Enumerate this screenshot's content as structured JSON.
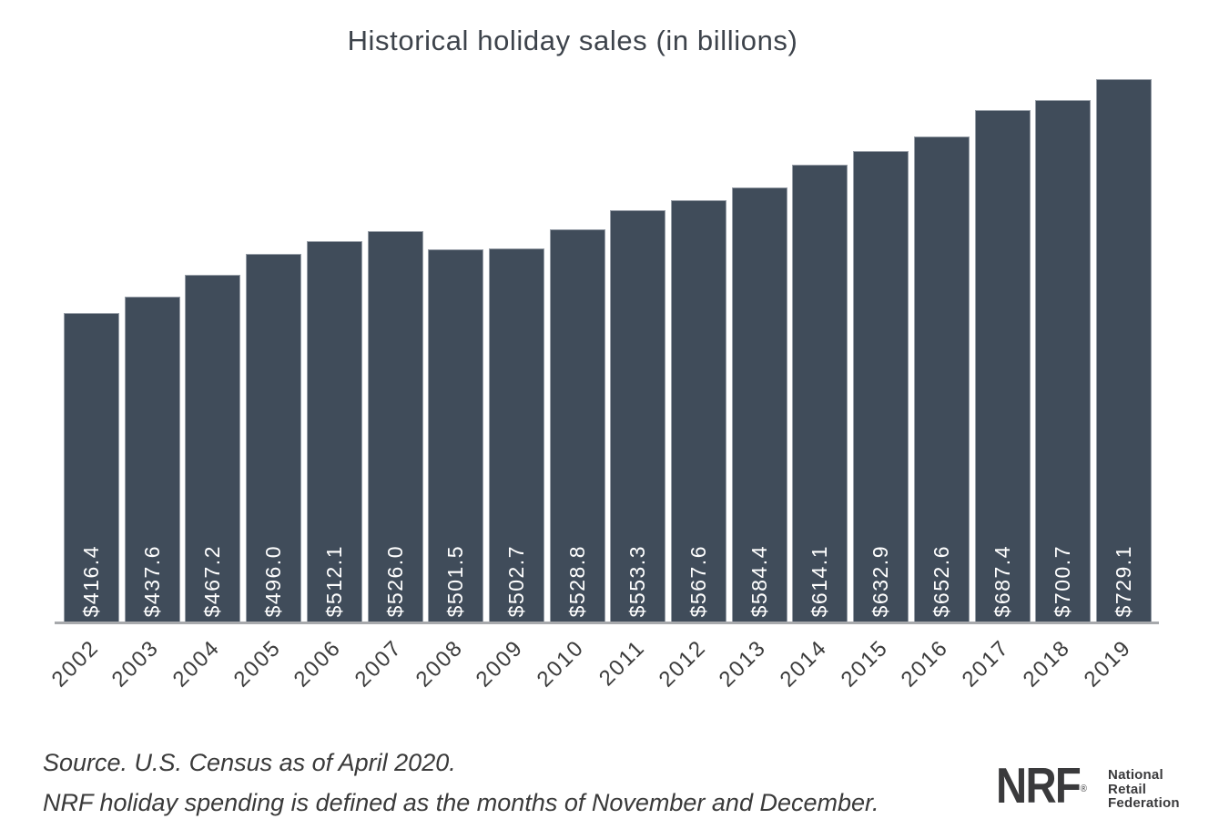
{
  "chart_data": {
    "type": "bar",
    "title": "Historical holiday sales (in billions)",
    "categories": [
      "2002",
      "2003",
      "2004",
      "2005",
      "2006",
      "2007",
      "2008",
      "2009",
      "2010",
      "2011",
      "2012",
      "2013",
      "2014",
      "2015",
      "2016",
      "2017",
      "2018",
      "2019"
    ],
    "values": [
      416.4,
      437.6,
      467.2,
      496.0,
      512.1,
      526.0,
      501.5,
      502.7,
      528.8,
      553.3,
      567.6,
      584.4,
      614.1,
      632.9,
      652.6,
      687.4,
      700.7,
      729.1
    ],
    "value_labels": [
      "$416.4",
      "$437.6",
      "$467.2",
      "$496.0",
      "$512.1",
      "$526.0",
      "$501.5",
      "$502.7",
      "$528.8",
      "$553.3",
      "$567.6",
      "$584.4",
      "$614.1",
      "$632.9",
      "$652.6",
      "$687.4",
      "$700.7",
      "$729.1"
    ],
    "xlabel": "",
    "ylabel": "",
    "ylim": [
      0,
      729.1
    ],
    "grid": false,
    "legend": "none",
    "value_label_position": "inside-bottom-rotated",
    "bar_color": "#404C5A",
    "value_label_color": "#FFFFFF"
  },
  "footer": {
    "source_line_1": "Source. U.S. Census as of April 2020.",
    "source_line_2": "NRF holiday spending is defined as the months of November and December."
  },
  "logo": {
    "acronym": "NRF",
    "registered": "®",
    "org_lines": [
      "National",
      "Retail",
      "Federation"
    ]
  },
  "colors": {
    "background": "#FFFFFF",
    "bar": "#404C5A",
    "bar_border": "#969DA6",
    "value_label": "#FFFFFF",
    "axis_line": "#A7A9AC",
    "title_text": "#3D434B",
    "year_label": "#3C3C3C",
    "footer_text": "#3A3A3A",
    "logo_text": "#3A3A3C"
  }
}
